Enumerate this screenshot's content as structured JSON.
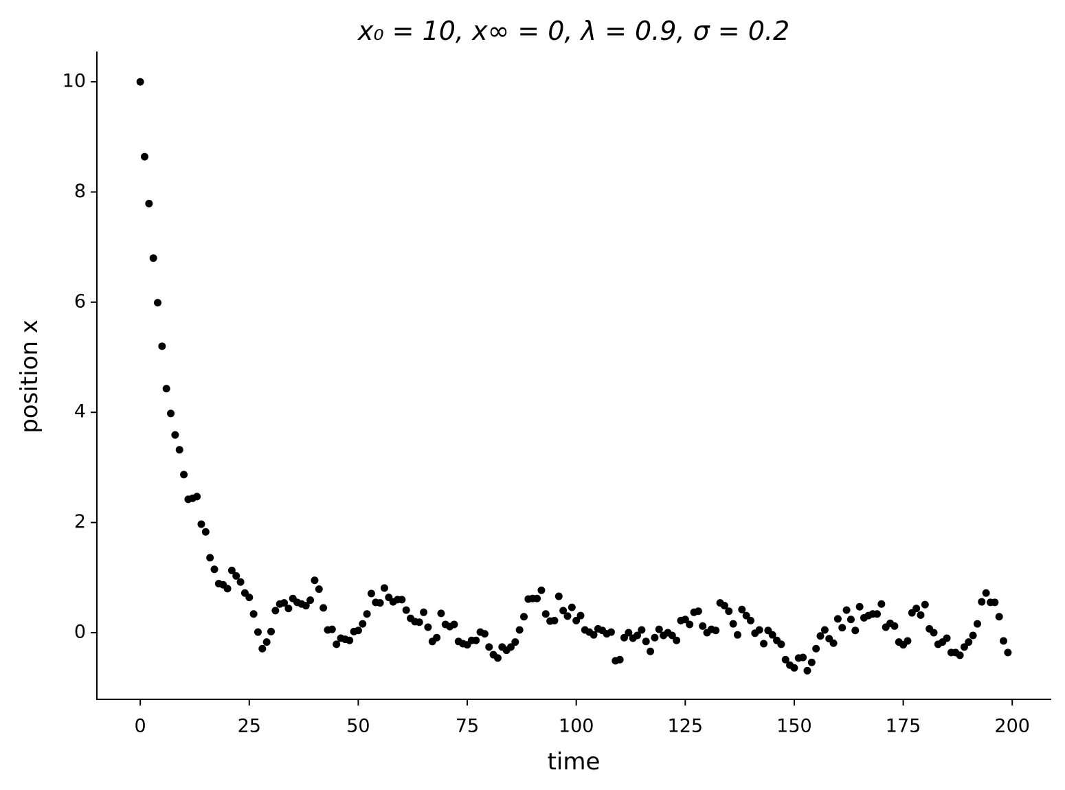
{
  "chart_data": {
    "type": "scatter",
    "title": "x₀ = 10, x∞ = 0, λ = 0.9, σ = 0.2",
    "x_label": "time",
    "y_label": "position x",
    "color": "#000000",
    "x": [
      0,
      1,
      2,
      3,
      4,
      5,
      6,
      7,
      8,
      9,
      10,
      11,
      12,
      13,
      14,
      15,
      16,
      17,
      18,
      19,
      20,
      21,
      22,
      23,
      24,
      25,
      26,
      27,
      28,
      29,
      30,
      31,
      32,
      33,
      34,
      35,
      36,
      37,
      38,
      39,
      40,
      41,
      42,
      43,
      44,
      45,
      46,
      47,
      48,
      49,
      50,
      51,
      52,
      53,
      54,
      55,
      56,
      57,
      58,
      59,
      60,
      61,
      62,
      63,
      64,
      65,
      66,
      67,
      68,
      69,
      70,
      71,
      72,
      73,
      74,
      75,
      76,
      77,
      78,
      79,
      80,
      81,
      82,
      83,
      84,
      85,
      86,
      87,
      88,
      89,
      90,
      91,
      92,
      93,
      94,
      95,
      96,
      97,
      98,
      99,
      100,
      101,
      102,
      103,
      104,
      105,
      106,
      107,
      108,
      109,
      110,
      111,
      112,
      113,
      114,
      115,
      116,
      117,
      118,
      119,
      120,
      121,
      122,
      123,
      124,
      125,
      126,
      127,
      128,
      129,
      130,
      131,
      132,
      133,
      134,
      135,
      136,
      137,
      138,
      139,
      140,
      141,
      142,
      143,
      144,
      145,
      146,
      147,
      148,
      149,
      150,
      151,
      152,
      153,
      154,
      155,
      156,
      157,
      158,
      159,
      160,
      161,
      162,
      163,
      164,
      165,
      166,
      167,
      168,
      169,
      170,
      171,
      172,
      173,
      174,
      175,
      176,
      177,
      178,
      179,
      180,
      181,
      182,
      183,
      184,
      185,
      186,
      187,
      188,
      189,
      190,
      191,
      192,
      193,
      194,
      195,
      196,
      197,
      198,
      199
    ],
    "values": [
      10,
      8.64,
      7.79,
      6.8,
      5.99,
      5.2,
      4.43,
      3.98,
      3.59,
      3.32,
      2.87,
      2.42,
      2.44,
      2.47,
      1.97,
      1.83,
      1.36,
      1.15,
      0.89,
      0.87,
      0.8,
      1.13,
      1.03,
      0.92,
      0.72,
      0.64,
      0.34,
      0.01,
      -0.29,
      -0.17,
      0.02,
      0.4,
      0.52,
      0.54,
      0.44,
      0.62,
      0.55,
      0.52,
      0.49,
      0.59,
      0.95,
      0.79,
      0.45,
      0.05,
      0.06,
      -0.21,
      -0.1,
      -0.12,
      -0.14,
      0.02,
      0.04,
      0.16,
      0.34,
      0.71,
      0.55,
      0.54,
      0.81,
      0.64,
      0.56,
      0.6,
      0.6,
      0.41,
      0.26,
      0.2,
      0.19,
      0.37,
      0.1,
      -0.16,
      -0.09,
      0.35,
      0.15,
      0.11,
      0.15,
      -0.16,
      -0.2,
      -0.22,
      -0.14,
      -0.14,
      0.01,
      -0.02,
      -0.26,
      -0.4,
      -0.46,
      -0.26,
      -0.32,
      -0.26,
      -0.17,
      0.05,
      0.29,
      0.61,
      0.62,
      0.62,
      0.77,
      0.34,
      0.21,
      0.22,
      0.66,
      0.4,
      0.3,
      0.46,
      0.22,
      0.31,
      0.05,
      0.01,
      -0.04,
      0.07,
      0.04,
      -0.02,
      0.01,
      -0.51,
      -0.49,
      -0.09,
      0,
      -0.1,
      -0.05,
      0.05,
      -0.16,
      -0.34,
      -0.09,
      0.06,
      -0.05,
      0,
      -0.05,
      -0.14,
      0.22,
      0.24,
      0.15,
      0.37,
      0.39,
      0.12,
      0,
      0.06,
      0.04,
      0.54,
      0.49,
      0.39,
      0.16,
      -0.04,
      0.42,
      0.31,
      0.22,
      -0.01,
      0.05,
      -0.2,
      0.04,
      -0.04,
      -0.14,
      -0.21,
      -0.49,
      -0.59,
      -0.64,
      -0.46,
      -0.45,
      -0.69,
      -0.54,
      -0.29,
      -0.06,
      0.05,
      -0.11,
      -0.19,
      0.25,
      0.09,
      0.41,
      0.24,
      0.04,
      0.47,
      0.27,
      0.31,
      0.34,
      0.34,
      0.52,
      0.1,
      0.17,
      0.12,
      -0.17,
      -0.22,
      -0.15,
      0.36,
      0.44,
      0.32,
      0.51,
      0.07,
      0,
      -0.21,
      -0.17,
      -0.1,
      -0.36,
      -0.36,
      -0.41,
      -0.26,
      -0.17,
      -0.05,
      0.16,
      0.56,
      0.72,
      0.55,
      0.55,
      0.29,
      -0.15,
      -0.36
    ],
    "xlim": [
      -9.95,
      208.95
    ],
    "ylim": [
      -1.21,
      10.55
    ],
    "xticks": [
      0,
      25,
      50,
      75,
      100,
      125,
      150,
      175,
      200
    ],
    "yticks": [
      0,
      2,
      4,
      6,
      8,
      10
    ]
  }
}
